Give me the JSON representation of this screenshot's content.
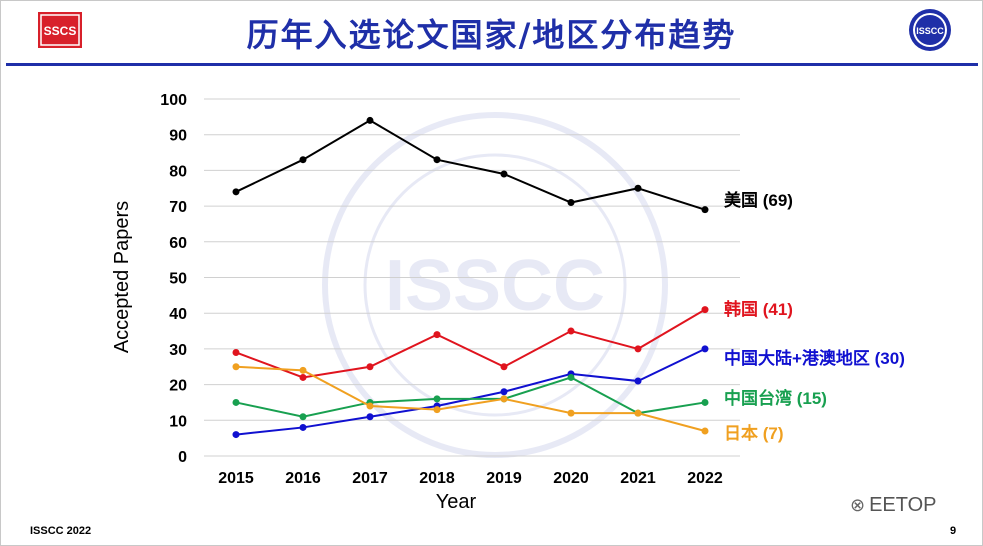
{
  "slide": {
    "title": "历年入选论文国家/地区分布趋势",
    "footer_left": "ISSCC 2022",
    "page_number": "9",
    "brand_watermark": "EETOP",
    "logo_left_text": "SSCS",
    "logo_right_text": "ISSCC",
    "watermark_text": "ISSCC",
    "title_color": "#1f2fa8"
  },
  "chart_data": {
    "type": "line",
    "title": "",
    "xlabel": "Year",
    "ylabel": "Accepted Papers",
    "x": [
      2015,
      2016,
      2017,
      2018,
      2019,
      2020,
      2021,
      2022
    ],
    "ylim": [
      0,
      100
    ],
    "yticks": [
      0,
      10,
      20,
      30,
      40,
      50,
      60,
      70,
      80,
      90,
      100
    ],
    "grid": "horizontal",
    "legend": "end-of-line labels",
    "series": [
      {
        "name": "美国",
        "end_label": "美国 (69)",
        "color": "#000000",
        "values": [
          74,
          83,
          94,
          83,
          79,
          71,
          75,
          69
        ]
      },
      {
        "name": "韩国",
        "end_label": "韩国 (41)",
        "color": "#e0141e",
        "values": [
          29,
          22,
          25,
          34,
          25,
          35,
          30,
          41
        ]
      },
      {
        "name": "中国大陆+港澳地区",
        "end_label": "中国大陆+港澳地区 (30)",
        "color": "#1010d0",
        "values": [
          6,
          8,
          11,
          14,
          18,
          23,
          21,
          30
        ]
      },
      {
        "name": "中国台湾",
        "end_label": "中国台湾 (15)",
        "color": "#18a050",
        "values": [
          15,
          11,
          15,
          16,
          16,
          22,
          12,
          15
        ]
      },
      {
        "name": "日本",
        "end_label": "日本 (7)",
        "color": "#f0a020",
        "values": [
          25,
          24,
          14,
          13,
          16,
          12,
          12,
          7
        ]
      }
    ]
  }
}
